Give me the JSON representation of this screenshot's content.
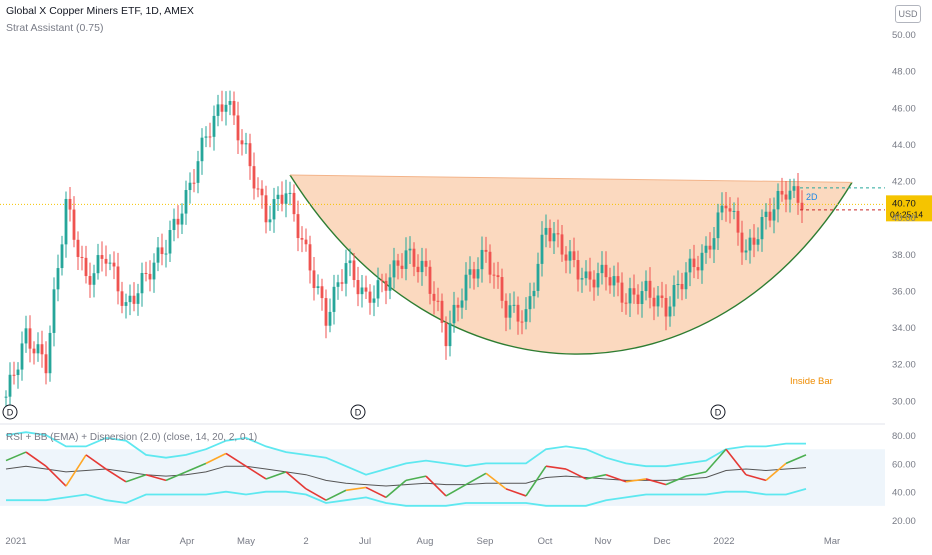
{
  "header": {
    "title": "Global X Copper Miners ETF, 1D, AMEX",
    "subtitle": "Strat Assistant (0.75)",
    "currency_button": "USD"
  },
  "indicator": {
    "legend": "RSI + BB (EMA) + Dispersion (2.0) (close, 14, 20, 2, 0.1)"
  },
  "annotations": {
    "inside_bar": "Inside Bar",
    "tag": "2D",
    "dividend_marker": "D",
    "last_price": "40.70",
    "countdown": "04:25:14"
  },
  "colors": {
    "up_candle": "#26a69a",
    "down_candle": "#ef5350",
    "pattern_fill": "#f9c9a4",
    "pattern_edge": "#2e7d32",
    "rsi_band": "#5ee8f0",
    "rsi_mid": "#555555",
    "price_label_bg": "#f5c400",
    "rsi_up": "#4caf50",
    "rsi_down": "#e53935",
    "rsi_mixed": "#ffa726"
  },
  "chart_data": [
    {
      "type": "candlestick",
      "title": "Global X Copper Miners ETF, 1D, AMEX",
      "x_tick_labels": [
        "2021",
        "Mar",
        "Apr",
        "May",
        "2",
        "Jul",
        "Aug",
        "Sep",
        "Oct",
        "Nov",
        "Dec",
        "2022",
        "Mar"
      ],
      "y_tick_labels": [
        "50.00",
        "48.00",
        "46.00",
        "44.00",
        "42.00",
        "40.00",
        "38.00",
        "36.00",
        "34.00",
        "32.00",
        "30.00"
      ],
      "ylim": [
        29.2,
        51.2
      ],
      "x": [
        "2021-01",
        "2021-01-15",
        "2021-02-01",
        "2021-02-10",
        "2021-02-22",
        "2021-03-05",
        "2021-03-15",
        "2021-03-25",
        "2021-04-05",
        "2021-04-15",
        "2021-04-25",
        "2021-05-05",
        "2021-05-10",
        "2021-05-20",
        "2021-06-01",
        "2021-06-10",
        "2021-06-20",
        "2021-07-01",
        "2021-07-10",
        "2021-07-20",
        "2021-08-01",
        "2021-08-10",
        "2021-08-20",
        "2021-09-01",
        "2021-09-10",
        "2021-09-20",
        "2021-10-01",
        "2021-10-08",
        "2021-10-20",
        "2021-11-01",
        "2021-11-10",
        "2021-11-20",
        "2021-12-01",
        "2021-12-10",
        "2021-12-20",
        "2022-01-01",
        "2022-01-10",
        "2022-01-20",
        "2022-02-01",
        "2022-02-10",
        "2022-02-18"
      ],
      "close": [
        30.2,
        33.5,
        32.0,
        40.8,
        36.5,
        38.0,
        35.0,
        36.8,
        38.5,
        41.0,
        44.5,
        46.5,
        43.5,
        40.0,
        41.5,
        38.0,
        34.5,
        37.5,
        35.5,
        36.5,
        38.0,
        37.0,
        33.5,
        36.5,
        38.0,
        35.0,
        34.5,
        39.5,
        38.0,
        36.5,
        37.0,
        35.5,
        36.0,
        35.0,
        37.0,
        38.0,
        41.0,
        38.0,
        40.0,
        41.5,
        40.7
      ],
      "last_price": 40.7,
      "countdown": "04:25:14",
      "annotations": [
        "2D",
        "Inside Bar"
      ],
      "dividend_markers": [
        "D",
        "D",
        "D"
      ],
      "pattern": "cup-and-handle (rounded bottom)",
      "pattern_bottom": 30.7,
      "pattern_rim": [
        42.3,
        41.9
      ]
    },
    {
      "type": "line",
      "title": "RSI + BB (EMA) + Dispersion (2.0) (close, 14, 20, 2, 0.1)",
      "y_tick_labels": [
        "80.00",
        "60.00",
        "40.00",
        "20.00"
      ],
      "ylim": [
        20,
        85
      ],
      "x": [
        "2021-01",
        "2021-01-15",
        "2021-02-01",
        "2021-02-10",
        "2021-02-22",
        "2021-03-05",
        "2021-03-15",
        "2021-03-25",
        "2021-04-05",
        "2021-04-15",
        "2021-04-25",
        "2021-05-05",
        "2021-05-10",
        "2021-05-20",
        "2021-06-01",
        "2021-06-10",
        "2021-06-20",
        "2021-07-01",
        "2021-07-10",
        "2021-07-20",
        "2021-08-01",
        "2021-08-10",
        "2021-08-20",
        "2021-09-01",
        "2021-09-10",
        "2021-09-20",
        "2021-10-01",
        "2021-10-08",
        "2021-10-20",
        "2021-11-01",
        "2021-11-10",
        "2021-11-20",
        "2021-12-01",
        "2021-12-10",
        "2021-12-20",
        "2022-01-01",
        "2022-01-10",
        "2022-01-20",
        "2022-02-01",
        "2022-02-10",
        "2022-02-18"
      ],
      "rsi": [
        62,
        68,
        58,
        44,
        66,
        56,
        47,
        52,
        48,
        54,
        60,
        67,
        58,
        49,
        54,
        42,
        34,
        41,
        43,
        36,
        48,
        51,
        37,
        45,
        53,
        42,
        37,
        58,
        56,
        49,
        52,
        47,
        49,
        45,
        51,
        54,
        70,
        52,
        48,
        60,
        66
      ],
      "bands": {
        "upper": [
          80,
          82,
          80,
          72,
          72,
          78,
          76,
          66,
          64,
          66,
          70,
          76,
          78,
          72,
          68,
          66,
          64,
          58,
          52,
          56,
          60,
          62,
          60,
          58,
          60,
          60,
          60,
          70,
          72,
          70,
          64,
          60,
          58,
          58,
          60,
          62,
          70,
          72,
          72,
          74,
          74
        ],
        "basis": [
          56,
          58,
          56,
          54,
          55,
          56,
          54,
          52,
          51,
          52,
          54,
          58,
          58,
          56,
          54,
          52,
          48,
          46,
          45,
          44,
          45,
          46,
          45,
          45,
          46,
          46,
          46,
          50,
          51,
          50,
          49,
          48,
          48,
          48,
          49,
          50,
          55,
          56,
          55,
          56,
          57
        ],
        "lower": [
          34,
          34,
          34,
          36,
          38,
          34,
          32,
          38,
          38,
          38,
          38,
          40,
          38,
          40,
          40,
          38,
          32,
          34,
          36,
          32,
          30,
          30,
          30,
          32,
          32,
          32,
          32,
          30,
          30,
          30,
          34,
          36,
          38,
          38,
          38,
          38,
          40,
          40,
          38,
          38,
          42
        ]
      }
    }
  ]
}
